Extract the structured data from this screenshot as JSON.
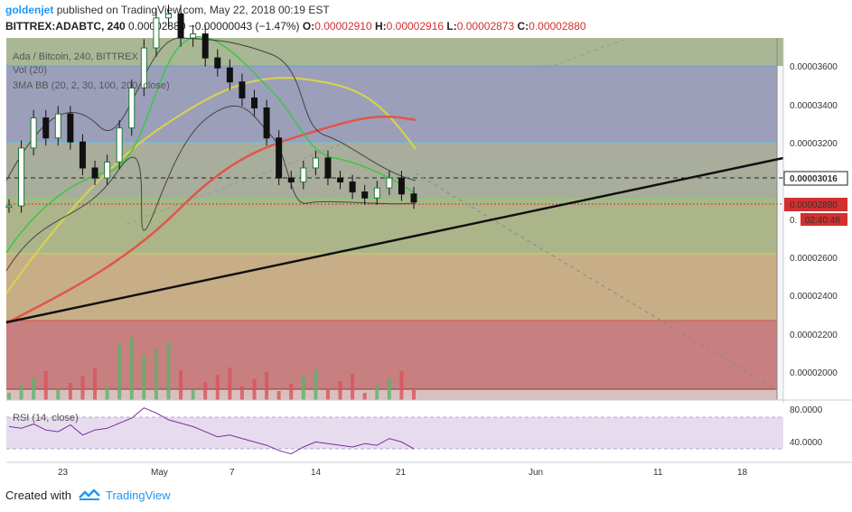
{
  "header": {
    "user": "goldenjet",
    "published_text": "published on TradingView.com, May 22, 2018 00:19 EST",
    "symbol": "BITTREX:ADABTC, 240",
    "price": "0.00002880",
    "change": "−0.00000043 (−1.47%)",
    "open_label": "O:",
    "open": "0.00002910",
    "high_label": "H:",
    "high": "0.00002916",
    "low_label": "L:",
    "low": "0.00002873",
    "close_label": "C:",
    "close": "0.00002880"
  },
  "legend": {
    "title": "Ada / Bitcoin, 240, BITTREX",
    "vol": "Vol (20)",
    "bb": "3MA BB (20, 2, 30, 100, 200, close)",
    "rsi": "RSI (14, close)"
  },
  "footer": {
    "created_with": "Created with",
    "brand": "TradingView"
  },
  "price_axis": {
    "ticks": [
      "0.00003600",
      "0.00003400",
      "0.00003200",
      "0.00002600",
      "0.00002400",
      "0.00002200",
      "0.00002000"
    ],
    "last_price_label": "0.00003016",
    "current_price_label": "0.00002880",
    "countdown": "02:40:48",
    "partial_label": "0."
  },
  "rsi_axis": {
    "ticks": [
      "80.0000",
      "40.0000"
    ]
  },
  "time_axis": {
    "ticks": [
      "23",
      "May",
      "7",
      "14",
      "21",
      "Jun",
      "11",
      "18"
    ]
  },
  "chart_data": {
    "type": "line",
    "title": "Ada / Bitcoin, 240, BITTREX",
    "ylim": [
      1.89e-05,
      3.7e-05
    ],
    "price_levels": [
      3.59e-05,
      3.2e-05,
      3.016e-05,
      2.88e-05,
      2.62e-05,
      2.27e-05,
      1.92e-05
    ],
    "series": [
      {
        "name": "close",
        "x": [
          0,
          4,
          8,
          12,
          16,
          20,
          24,
          28,
          32,
          36,
          40,
          44,
          48,
          52,
          56,
          60,
          64,
          68,
          72,
          76,
          80,
          84,
          88,
          92,
          96,
          100,
          104,
          108,
          112,
          116,
          120,
          124,
          128,
          132
        ],
        "values": [
          2.86e-05,
          3.15e-05,
          3.3e-05,
          3.2e-05,
          3.32e-05,
          3.18e-05,
          3.05e-05,
          3e-05,
          3.08e-05,
          3.25e-05,
          3.45e-05,
          3.65e-05,
          3.8e-05,
          3.82e-05,
          3.7e-05,
          3.72e-05,
          3.6e-05,
          3.55e-05,
          3.48e-05,
          3.4e-05,
          3.35e-05,
          3.2e-05,
          3e-05,
          2.98e-05,
          3.05e-05,
          3.1e-05,
          3e-05,
          2.98e-05,
          2.93e-05,
          2.9e-05,
          2.95e-05,
          3e-05,
          2.92e-05,
          2.88e-05
        ]
      },
      {
        "name": "MA 200",
        "x": [
          0,
          20,
          40,
          60,
          80,
          100,
          115,
          130
        ],
        "values": [
          2.27e-05,
          2.4e-05,
          2.58e-05,
          2.77e-05,
          2.96e-05,
          3.15e-05,
          3.33e-05,
          3.32e-05
        ]
      },
      {
        "name": "MA 100",
        "x": [
          0,
          20,
          40,
          60,
          75,
          90,
          110,
          130
        ],
        "values": [
          2.36e-05,
          2.61e-05,
          3.08e-05,
          3.38e-05,
          3.47e-05,
          3.5e-05,
          3.4e-05,
          3.19e-05
        ]
      },
      {
        "name": "Trendline",
        "x": [
          0,
          250
        ],
        "values": [
          2.27e-05,
          3.1e-05
        ]
      }
    ],
    "rsi": {
      "ylim": [
        20,
        90
      ],
      "levels": [
        70,
        30
      ],
      "values": [
        62,
        60,
        65,
        58,
        56,
        64,
        52,
        58,
        60,
        66,
        72,
        84,
        78,
        70,
        66,
        62,
        56,
        50,
        52,
        48,
        44,
        40,
        34,
        30,
        38,
        44,
        42,
        40,
        38,
        42,
        40,
        48,
        44,
        36
      ]
    }
  }
}
